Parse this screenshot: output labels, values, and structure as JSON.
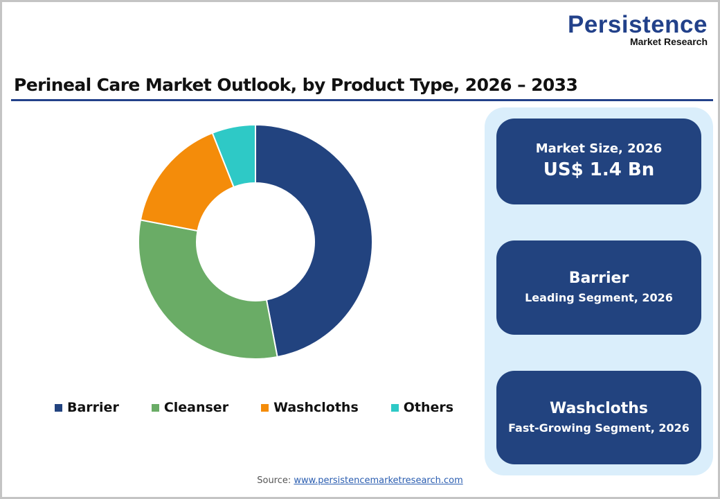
{
  "logo": {
    "main": "Persistence",
    "sub": "Market Research"
  },
  "title": "Perineal Care Market Outlook, by Product Type, 2026 – 2033",
  "colors": {
    "barrier": "#22437f",
    "cleanser": "#6aac66",
    "washcloths": "#f48c0a",
    "others": "#2ec9c6",
    "accent": "#22418a",
    "panel_bg": "#daeefb"
  },
  "legend": [
    {
      "label": "Barrier",
      "color": "#22437f"
    },
    {
      "label": "Cleanser",
      "color": "#6aac66"
    },
    {
      "label": "Washcloths",
      "color": "#f48c0a"
    },
    {
      "label": "Others",
      "color": "#2ec9c6"
    }
  ],
  "kpis": {
    "market_size": {
      "label": "Market Size, 2026",
      "value": "US$ 1.4 Bn"
    },
    "leading": {
      "head": "Barrier",
      "sub": "Leading Segment, 2026"
    },
    "fast_growing": {
      "head": "Washcloths",
      "sub": "Fast-Growing Segment, 2026"
    }
  },
  "source": {
    "label": "Source:",
    "link": "www.persistencemarketresearch.com"
  },
  "chart_data": {
    "type": "pie",
    "subtype": "donut",
    "title": "Perineal Care Market Outlook, by Product Type, 2026 – 2033",
    "categories": [
      "Barrier",
      "Cleanser",
      "Washcloths",
      "Others"
    ],
    "values": [
      47,
      31,
      16,
      6
    ],
    "unit": "% share (estimated from slice angles)",
    "colors": [
      "#22437f",
      "#6aac66",
      "#f48c0a",
      "#2ec9c6"
    ],
    "start_angle": "12 o'clock, clockwise",
    "legend_position": "bottom",
    "annotations": [
      "Market Size, 2026: US$ 1.4 Bn",
      "Barrier – Leading Segment, 2026",
      "Washcloths – Fast-Growing Segment, 2026"
    ]
  }
}
